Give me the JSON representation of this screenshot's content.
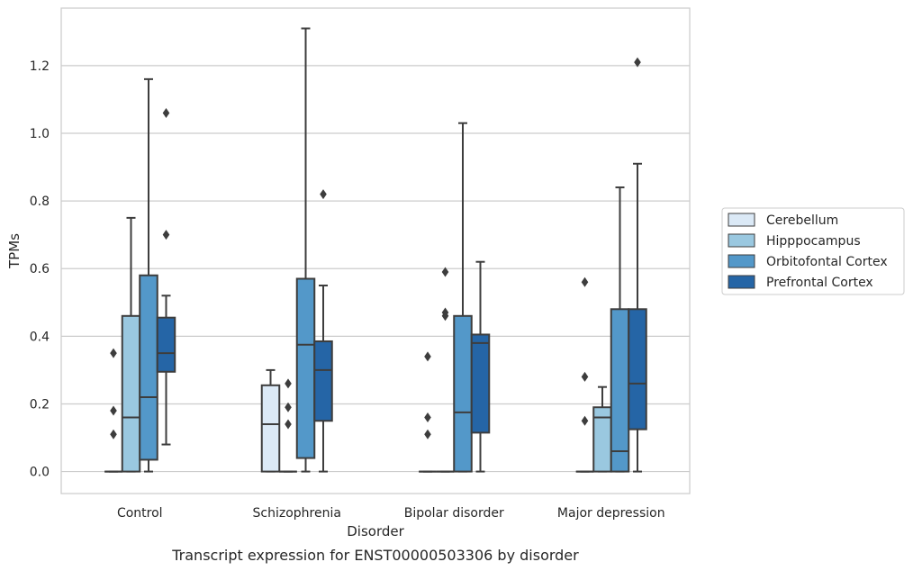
{
  "chart_data": {
    "type": "box",
    "title": "",
    "caption": "Transcript expression for ENST00000503306 by disorder",
    "xlabel": "Disorder",
    "ylabel": "TPMs",
    "ylim": [
      -0.065,
      1.37
    ],
    "yticks": [
      "0.0",
      "0.2",
      "0.4",
      "0.6",
      "0.8",
      "1.0",
      "1.2"
    ],
    "grid": "horizontal",
    "legend_position": "right",
    "categories": [
      "Control",
      "Schizophrenia",
      "Bipolar disorder",
      "Major depression"
    ],
    "series": [
      {
        "name": "Cerebellum",
        "color": "#dbe9f6",
        "boxes": [
          {
            "q1": 0,
            "median": 0,
            "q3": 0,
            "whisker_low": 0,
            "whisker_high": 0,
            "outliers": [
              0.11,
              0.18,
              0.35
            ]
          },
          {
            "q1": 0,
            "median": 0.14,
            "q3": 0.255,
            "whisker_low": 0,
            "whisker_high": 0.3,
            "outliers": []
          },
          {
            "q1": 0,
            "median": 0,
            "q3": 0,
            "whisker_low": 0,
            "whisker_high": 0,
            "outliers": [
              0.11,
              0.16,
              0.34
            ]
          },
          {
            "q1": 0,
            "median": 0,
            "q3": 0,
            "whisker_low": 0,
            "whisker_high": 0,
            "outliers": [
              0.15,
              0.28,
              0.56
            ]
          }
        ]
      },
      {
        "name": "Hipppocampus",
        "color": "#9ac8e0",
        "boxes": [
          {
            "q1": 0,
            "median": 0.16,
            "q3": 0.46,
            "whisker_low": 0,
            "whisker_high": 0.75,
            "outliers": []
          },
          {
            "q1": 0,
            "median": 0,
            "q3": 0,
            "whisker_low": 0,
            "whisker_high": 0,
            "outliers": [
              0.14,
              0.19,
              0.26
            ]
          },
          {
            "q1": 0,
            "median": 0,
            "q3": 0,
            "whisker_low": 0,
            "whisker_high": 0,
            "outliers": [
              0.46,
              0.47,
              0.59
            ]
          },
          {
            "q1": 0,
            "median": 0.16,
            "q3": 0.19,
            "whisker_low": 0,
            "whisker_high": 0.25,
            "outliers": []
          }
        ]
      },
      {
        "name": "Orbitofontal Cortex",
        "color": "#5398c9",
        "boxes": [
          {
            "q1": 0.035,
            "median": 0.22,
            "q3": 0.58,
            "whisker_low": 0,
            "whisker_high": 1.16,
            "outliers": []
          },
          {
            "q1": 0.04,
            "median": 0.375,
            "q3": 0.57,
            "whisker_low": 0,
            "whisker_high": 1.31,
            "outliers": []
          },
          {
            "q1": 0,
            "median": 0.175,
            "q3": 0.46,
            "whisker_low": 0,
            "whisker_high": 1.03,
            "outliers": []
          },
          {
            "q1": 0,
            "median": 0.06,
            "q3": 0.48,
            "whisker_low": 0,
            "whisker_high": 0.84,
            "outliers": []
          }
        ]
      },
      {
        "name": "Prefrontal Cortex",
        "color": "#2565a6",
        "boxes": [
          {
            "q1": 0.295,
            "median": 0.35,
            "q3": 0.455,
            "whisker_low": 0.08,
            "whisker_high": 0.52,
            "outliers": [
              0.7,
              1.06
            ]
          },
          {
            "q1": 0.15,
            "median": 0.3,
            "q3": 0.385,
            "whisker_low": 0,
            "whisker_high": 0.55,
            "outliers": [
              0.82
            ]
          },
          {
            "q1": 0.115,
            "median": 0.38,
            "q3": 0.405,
            "whisker_low": 0,
            "whisker_high": 0.62,
            "outliers": []
          },
          {
            "q1": 0.125,
            "median": 0.26,
            "q3": 0.48,
            "whisker_low": 0,
            "whisker_high": 0.91,
            "outliers": [
              1.21
            ]
          }
        ]
      }
    ]
  }
}
